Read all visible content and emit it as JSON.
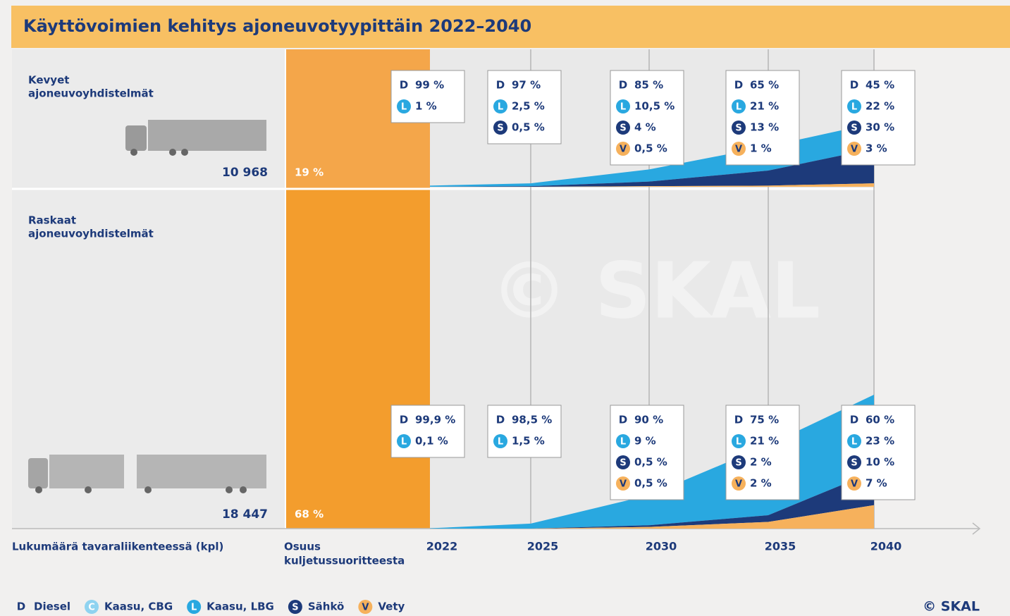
{
  "title": "Käyttövoimien kehitys ajoneuvotyypittäin 2022–2040",
  "watermark": "© SKAL",
  "axis": {
    "count_label": "Lukumäärä tavaraliikenteessä (kpl)",
    "share_label_1": "Osuus",
    "share_label_2": "kuljetussuoritteesta",
    "years": [
      "2022",
      "2025",
      "2030",
      "2035",
      "2040"
    ]
  },
  "legend": [
    {
      "letter": "D",
      "name": "Diesel"
    },
    {
      "letter": "C",
      "name": "Kaasu, CBG"
    },
    {
      "letter": "L",
      "name": "Kaasu, LBG"
    },
    {
      "letter": "S",
      "name": "Sähkö"
    },
    {
      "letter": "V",
      "name": "Vety"
    }
  ],
  "credit": "© SKAL",
  "panels": [
    {
      "name_1": "Kevyet",
      "name_2": "ajoneuvoyhdistelmät",
      "count": "10 968",
      "share": "19 %",
      "boxes": [
        [
          {
            "letter": "D",
            "value": 99,
            "label": "99 %"
          },
          {
            "letter": "L",
            "value": 1,
            "label": "1 %"
          }
        ],
        [
          {
            "letter": "D",
            "value": 97,
            "label": "97 %"
          },
          {
            "letter": "L",
            "value": 2.5,
            "label": "2,5 %"
          },
          {
            "letter": "S",
            "value": 0.5,
            "label": "0,5 %"
          }
        ],
        [
          {
            "letter": "D",
            "value": 85,
            "label": "85 %"
          },
          {
            "letter": "L",
            "value": 10.5,
            "label": "10,5 %"
          },
          {
            "letter": "S",
            "value": 4,
            "label": "4 %"
          },
          {
            "letter": "V",
            "value": 0.5,
            "label": "0,5 %"
          }
        ],
        [
          {
            "letter": "D",
            "value": 65,
            "label": "65 %"
          },
          {
            "letter": "L",
            "value": 21,
            "label": "21 %"
          },
          {
            "letter": "S",
            "value": 13,
            "label": "13 %"
          },
          {
            "letter": "V",
            "value": 1,
            "label": "1 %"
          }
        ],
        [
          {
            "letter": "D",
            "value": 45,
            "label": "45 %"
          },
          {
            "letter": "L",
            "value": 22,
            "label": "22 %"
          },
          {
            "letter": "S",
            "value": 30,
            "label": "30 %"
          },
          {
            "letter": "V",
            "value": 3,
            "label": "3 %"
          }
        ]
      ]
    },
    {
      "name_1": "Raskaat",
      "name_2": "ajoneuvoyhdistelmät",
      "count": "18 447",
      "share": "68 %",
      "boxes": [
        [
          {
            "letter": "D",
            "value": 99.9,
            "label": "99,9 %"
          },
          {
            "letter": "L",
            "value": 0.1,
            "label": "0,1 %"
          }
        ],
        [
          {
            "letter": "D",
            "value": 98.5,
            "label": "98,5 %"
          },
          {
            "letter": "L",
            "value": 1.5,
            "label": "1,5 %"
          }
        ],
        [
          {
            "letter": "D",
            "value": 90,
            "label": "90 %"
          },
          {
            "letter": "L",
            "value": 9,
            "label": "9 %"
          },
          {
            "letter": "S",
            "value": 0.5,
            "label": "0,5 %"
          },
          {
            "letter": "V",
            "value": 0.5,
            "label": "0,5 %"
          }
        ],
        [
          {
            "letter": "D",
            "value": 75,
            "label": "75 %"
          },
          {
            "letter": "L",
            "value": 21,
            "label": "21 %"
          },
          {
            "letter": "S",
            "value": 2,
            "label": "2 %"
          },
          {
            "letter": "V",
            "value": 2,
            "label": "2 %"
          }
        ],
        [
          {
            "letter": "D",
            "value": 60,
            "label": "60 %"
          },
          {
            "letter": "L",
            "value": 23,
            "label": "23 %"
          },
          {
            "letter": "S",
            "value": 10,
            "label": "10 %"
          },
          {
            "letter": "V",
            "value": 7,
            "label": "7 %"
          }
        ]
      ]
    }
  ]
}
